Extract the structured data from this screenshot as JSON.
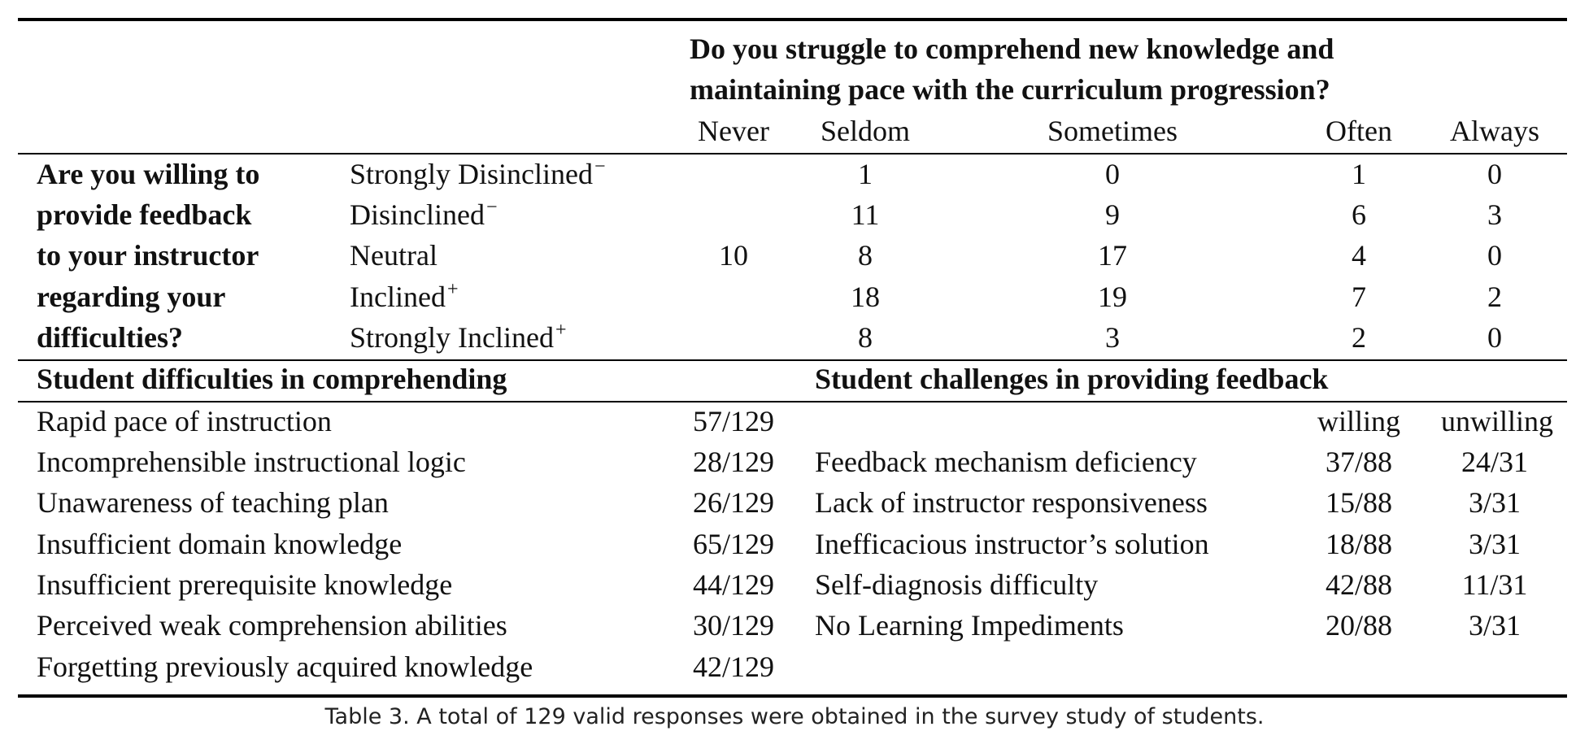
{
  "top_table": {
    "question_title": "Do you struggle to comprehend new knowledge and maintaining pace with the curriculum progression?",
    "question_line1": "Do you struggle to comprehend new knowledge and",
    "question_line2": "maintaining pace with the curriculum progression?",
    "columns": [
      "Never",
      "Seldom",
      "Sometimes",
      "Often",
      "Always"
    ],
    "row_question_lines": [
      "Are you willing to",
      "provide feedback",
      "to your instructor",
      "regarding your",
      "difficulties?"
    ],
    "rows": [
      {
        "label": "Strongly Disinclined",
        "sup": "−",
        "values": [
          "",
          "1",
          "0",
          "1",
          "0"
        ]
      },
      {
        "label": "Disinclined",
        "sup": "−",
        "values": [
          "",
          "11",
          "9",
          "6",
          "3"
        ]
      },
      {
        "label": "Neutral",
        "sup": "",
        "values": [
          "10",
          "8",
          "17",
          "4",
          "0"
        ]
      },
      {
        "label": "Inclined",
        "sup": "+",
        "values": [
          "",
          "18",
          "19",
          "7",
          "2"
        ]
      },
      {
        "label": "Strongly Inclined",
        "sup": "+",
        "values": [
          "",
          "8",
          "3",
          "2",
          "0"
        ]
      }
    ]
  },
  "difficulties": {
    "title": "Student difficulties in comprehending",
    "items": [
      {
        "label": "Rapid pace of instruction",
        "value": "57/129"
      },
      {
        "label": "Incomprehensible instructional logic",
        "value": "28/129"
      },
      {
        "label": "Unawareness of teaching plan",
        "value": "26/129"
      },
      {
        "label": "Insufficient domain knowledge",
        "value": "65/129"
      },
      {
        "label": "Insufficient prerequisite knowledge",
        "value": "44/129"
      },
      {
        "label": "Perceived weak comprehension abilities",
        "value": "30/129"
      },
      {
        "label": "Forgetting previously acquired knowledge",
        "value": "42/129"
      }
    ]
  },
  "challenges": {
    "title": "Student challenges in providing feedback",
    "col_willing": "willing",
    "col_unwilling": "unwilling",
    "items": [
      {
        "label": "Feedback mechanism deficiency",
        "willing": "37/88",
        "unwilling": "24/31"
      },
      {
        "label": "Lack of instructor responsiveness",
        "willing": "15/88",
        "unwilling": "3/31"
      },
      {
        "label": "Inefficacious instructor’s solution",
        "willing": "18/88",
        "unwilling": "3/31"
      },
      {
        "label": "Self-diagnosis difficulty",
        "willing": "42/88",
        "unwilling": "11/31"
      },
      {
        "label": "No Learning Impediments",
        "willing": "20/88",
        "unwilling": "3/31"
      }
    ]
  },
  "caption": "Table 3.  A total of 129 valid responses were obtained in the survey study of students."
}
